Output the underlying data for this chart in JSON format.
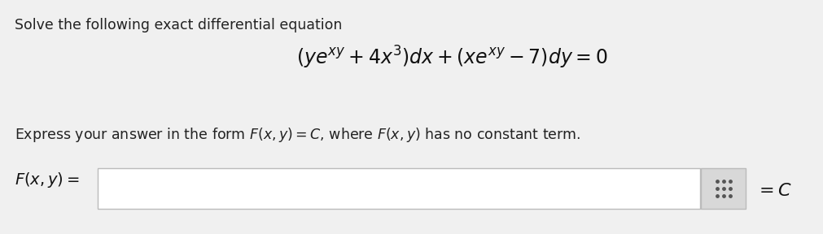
{
  "bg_color": "#f0f0f0",
  "title_text": "Solve the following exact differential equation",
  "title_fontsize": 12.5,
  "eq_fontsize": 17,
  "express_fontsize": 12.5,
  "label_fontsize": 14,
  "equals_c_fontsize": 16,
  "box_color": "#ffffff",
  "box_edge_color": "#bbbbbb",
  "grid_icon_color": "#d8d8d8",
  "grid_dot_color": "#555555"
}
